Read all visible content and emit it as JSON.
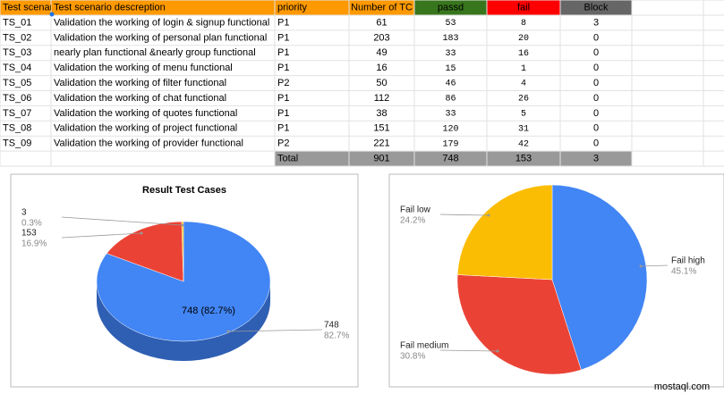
{
  "table": {
    "header": [
      "Test scenario",
      "Test scenario descreption",
      "priority",
      "Number of TC",
      "passd",
      "fail",
      "Block"
    ],
    "rows": [
      [
        "TS_01",
        "Validation the working of login & signup  functional",
        "P1",
        61,
        53,
        8,
        3
      ],
      [
        "TS_02",
        "Validation the working of personal plan functional",
        "P1",
        203,
        183,
        20,
        0
      ],
      [
        "TS_03",
        "nearly plan functional &nearly group functional",
        "P1",
        49,
        33,
        16,
        0
      ],
      [
        "TS_04",
        "Validation the working of menu functional",
        "P1",
        16,
        15,
        1,
        0
      ],
      [
        "TS_05",
        "Validation the working of filter functional",
        "P2",
        50,
        46,
        4,
        0
      ],
      [
        "TS_06",
        "Validation the working of chat functional",
        "P1",
        112,
        86,
        26,
        0
      ],
      [
        "TS_07",
        "Validation the working of quotes functional",
        "P1",
        38,
        33,
        5,
        0
      ],
      [
        "TS_08",
        "Validation the working of project functional",
        "P1",
        151,
        120,
        31,
        0
      ],
      [
        "TS_09",
        "Validation the working of provider functional",
        "P2",
        221,
        179,
        42,
        0
      ]
    ],
    "total": [
      "Total",
      901,
      748,
      153,
      3
    ]
  },
  "chart_data": [
    {
      "type": "pie",
      "title": "Result Test Cases",
      "three_d": true,
      "values": [
        748,
        153,
        3
      ],
      "colors": [
        "#4285f4",
        "#ea4335",
        "#fbbc04"
      ],
      "percent_labels": [
        "82.7%",
        "16.9%",
        "0.3%"
      ],
      "center_label": "748 (82.7%)"
    },
    {
      "type": "pie",
      "categories": [
        "Fail high",
        "Fail medium",
        "Fail low"
      ],
      "values": [
        45.1,
        30.8,
        24.2
      ],
      "value_labels": [
        "45.1%",
        "30.8%",
        "24.2%"
      ],
      "colors": [
        "#4285f4",
        "#ea4335",
        "#fbbc04"
      ]
    }
  ],
  "watermark": "mostaql.com"
}
